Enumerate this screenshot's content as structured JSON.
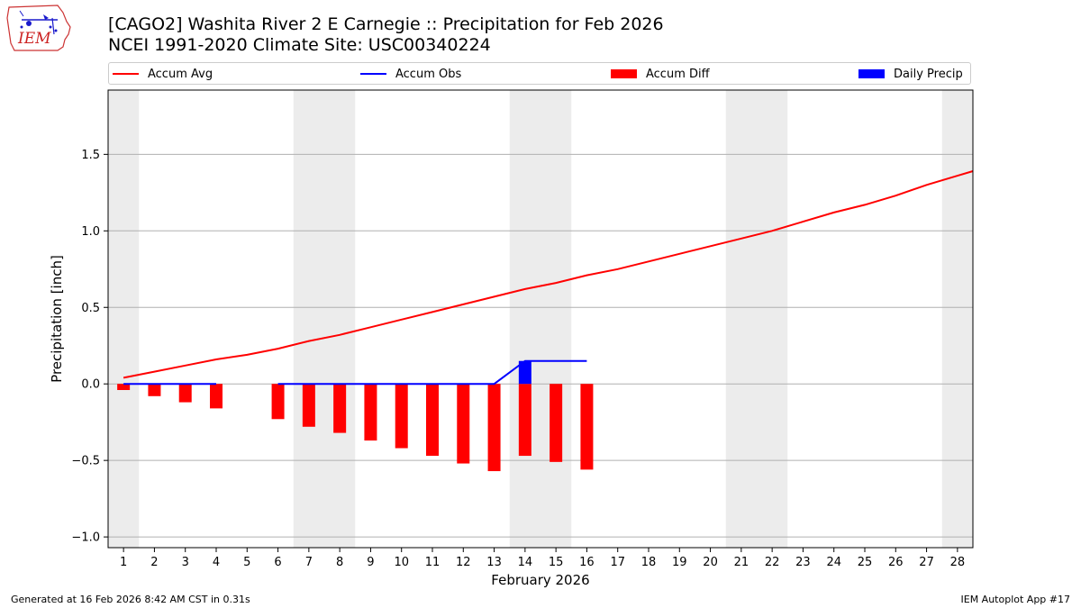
{
  "header": {
    "title_line1": "[CAGO2] Washita River 2 E Carnegie :: Precipitation for Feb 2026",
    "title_line2": "NCEI 1991-2020 Climate Site: USC00340224"
  },
  "logo": {
    "text": "IEM"
  },
  "footer": {
    "generated": "Generated at 16 Feb 2026 8:42 AM CST in 0.31s",
    "app": "IEM Autoplot App #17"
  },
  "chart_data": {
    "type": "bar",
    "xlabel": "February 2026",
    "ylabel": "Precipitation [inch]",
    "ylim": [
      -1.07,
      1.92
    ],
    "yticks": [
      -1.0,
      -0.5,
      0.0,
      0.5,
      1.0,
      1.5
    ],
    "ytick_labels": [
      "−1.0",
      "−0.5",
      "0.0",
      "0.5",
      "1.0",
      "1.5"
    ],
    "xlim": [
      0.5,
      28.5
    ],
    "days": [
      1,
      2,
      3,
      4,
      5,
      6,
      7,
      8,
      9,
      10,
      11,
      12,
      13,
      14,
      15,
      16,
      17,
      18,
      19,
      20,
      21,
      22,
      23,
      24,
      25,
      26,
      27,
      28
    ],
    "weekend_days": [
      1,
      7,
      8,
      14,
      15,
      21,
      22,
      28
    ],
    "grid": true,
    "legend_placement": "top",
    "series": [
      {
        "name": "Accum Avg",
        "kind": "line",
        "color": "#ff0000",
        "x": [
          1,
          2,
          3,
          4,
          5,
          6,
          7,
          8,
          9,
          10,
          11,
          12,
          13,
          14,
          15,
          16,
          17,
          18,
          19,
          20,
          21,
          22,
          23,
          24,
          25,
          26,
          27,
          28,
          28.5
        ],
        "values": [
          0.04,
          0.08,
          0.12,
          0.16,
          0.19,
          0.23,
          0.28,
          0.32,
          0.37,
          0.42,
          0.47,
          0.52,
          0.57,
          0.62,
          0.66,
          0.71,
          0.75,
          0.8,
          0.85,
          0.9,
          0.95,
          1.0,
          1.06,
          1.12,
          1.17,
          1.23,
          1.3,
          1.36,
          1.39
        ]
      },
      {
        "name": "Accum Obs",
        "kind": "line",
        "color": "#0000ff",
        "segments": [
          {
            "x": [
              1,
              2,
              3,
              4
            ],
            "values": [
              0,
              0,
              0,
              0
            ]
          },
          {
            "x": [
              6,
              7,
              8,
              9,
              10,
              11,
              12,
              13,
              14,
              15,
              16
            ],
            "values": [
              0,
              0,
              0,
              0,
              0,
              0,
              0,
              0,
              0.15,
              0.15,
              0.15
            ]
          }
        ]
      },
      {
        "name": "Accum Diff",
        "kind": "bar",
        "color": "#ff0000",
        "x": [
          1,
          2,
          3,
          4,
          6,
          7,
          8,
          9,
          10,
          11,
          12,
          13,
          14,
          15,
          16
        ],
        "values": [
          -0.04,
          -0.08,
          -0.12,
          -0.16,
          -0.23,
          -0.28,
          -0.32,
          -0.37,
          -0.42,
          -0.47,
          -0.52,
          -0.57,
          -0.47,
          -0.51,
          -0.56
        ]
      },
      {
        "name": "Daily Precip",
        "kind": "bar",
        "color": "#0000ff",
        "x": [
          14
        ],
        "values": [
          0.15
        ]
      }
    ]
  }
}
